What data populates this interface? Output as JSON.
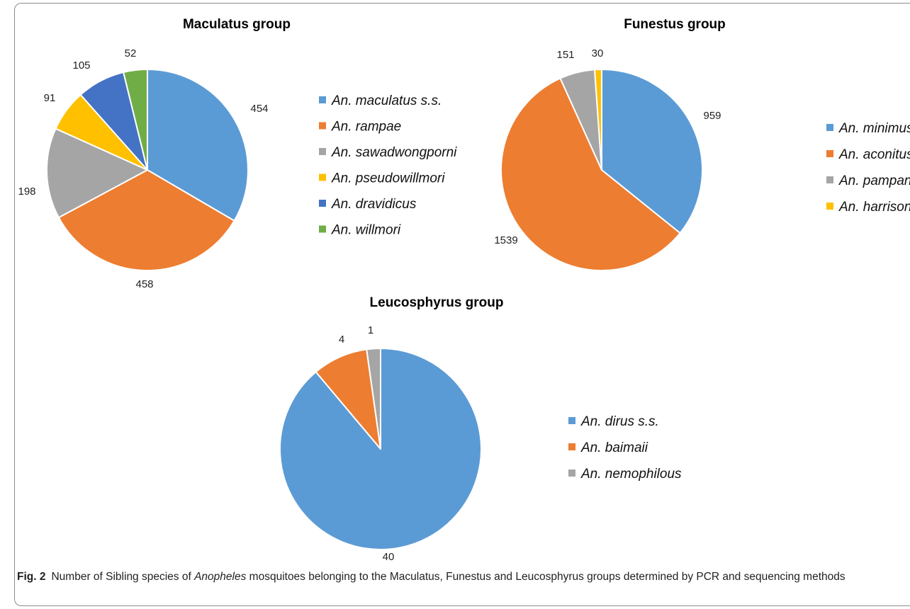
{
  "chart_data": [
    {
      "type": "pie",
      "title": "Maculatus group",
      "categories": [
        "An. maculatus s.s.",
        "An. rampae",
        "An. sawadwongporni",
        "An. pseudowillmori",
        "An. dravidicus",
        "An. willmori"
      ],
      "values": [
        454,
        458,
        198,
        91,
        105,
        52
      ],
      "colors": [
        "#5b9bd5",
        "#ed7d31",
        "#a5a5a5",
        "#ffc000",
        "#4472c4",
        "#70ad47"
      ],
      "legend": "right"
    },
    {
      "type": "pie",
      "title": "Funestus group",
      "categories": [
        "An. minimus s.s.",
        "An. aconitus",
        "An. pampanai",
        "An. harrisoni"
      ],
      "values": [
        959,
        1539,
        151,
        30
      ],
      "colors": [
        "#5b9bd5",
        "#ed7d31",
        "#a5a5a5",
        "#ffc000"
      ],
      "legend": "right"
    },
    {
      "type": "pie",
      "title": "Leucosphyrus group",
      "categories": [
        "An. dirus s.s.",
        "An. baimaii",
        "An. nemophilous"
      ],
      "values": [
        40,
        4,
        1
      ],
      "colors": [
        "#5b9bd5",
        "#ed7d31",
        "#a5a5a5"
      ],
      "legend": "right"
    }
  ],
  "caption": {
    "label": "Fig. 2",
    "text_before": "Number of Sibling species of ",
    "text_italic": "Anopheles",
    "text_after": " mosquitoes belonging to the Maculatus, Funestus and Leucosphyrus groups determined by PCR and sequencing methods"
  }
}
